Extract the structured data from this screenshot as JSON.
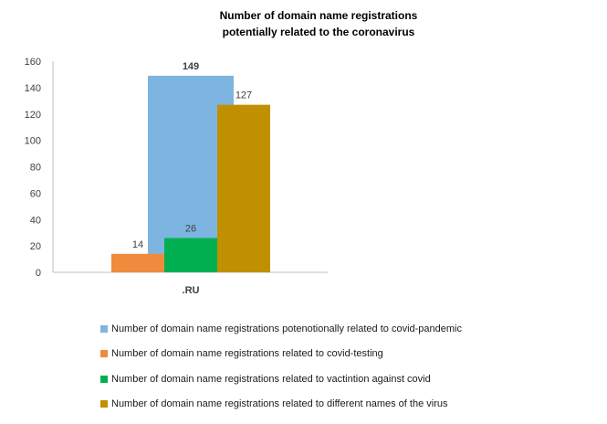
{
  "chart_data": {
    "type": "bar",
    "title_lines": [
      "Number of domain name registrations",
      "potentially related to the coronavirus"
    ],
    "categories": [
      ".RU"
    ],
    "ylim": [
      0,
      160
    ],
    "yticks": [
      0,
      20,
      40,
      60,
      80,
      100,
      120,
      140,
      160
    ],
    "grid": false,
    "legend_position": "bottom",
    "series": [
      {
        "name": "Number of domain name registrations potenotionally related to covid-pandemic",
        "values": [
          149
        ],
        "color": "#7EB5E0",
        "label": "149"
      },
      {
        "name": "Number of domain name registrations related to covid-testing",
        "values": [
          14
        ],
        "color": "#F08A3C",
        "label": "14"
      },
      {
        "name": "Number of domain name registrations related to vactintion against covid",
        "values": [
          26
        ],
        "color": "#00B050",
        "label": "26"
      },
      {
        "name": "Number of domain name registrations related to different names of the virus",
        "values": [
          127
        ],
        "color": "#C09000",
        "label": "127"
      }
    ]
  }
}
